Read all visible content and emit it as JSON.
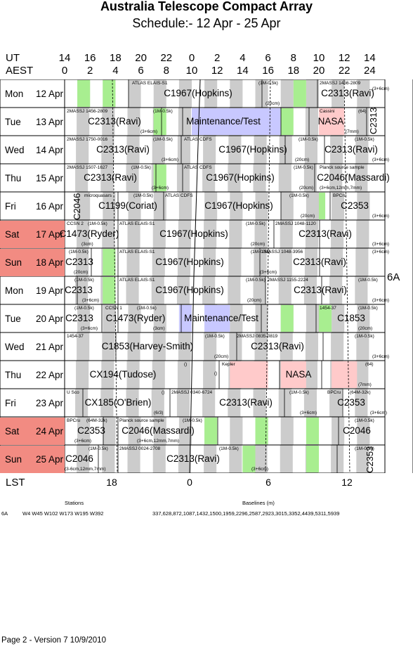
{
  "title": "Australia Telescope Compact Array",
  "subtitle": "Schedule:- 12 Apr - 25 Apr",
  "axes": {
    "ut_label": "UT",
    "aest_label": "AEST",
    "lst_label": "LST",
    "ut_ticks": [
      "14",
      "16",
      "18",
      "20",
      "22",
      "0",
      "2",
      "4",
      "6",
      "8",
      "10",
      "12",
      "14"
    ],
    "aest_ticks": [
      "0",
      "2",
      "4",
      "6",
      "8",
      "10",
      "12",
      "14",
      "16",
      "18",
      "20",
      "22",
      "24"
    ],
    "lst_ticks": [
      "18",
      "0",
      "6",
      "12"
    ]
  },
  "array_config": "6A",
  "days": [
    {
      "day": "Mon",
      "date": "12 Apr",
      "weekend": false
    },
    {
      "day": "Tue",
      "date": "13 Apr",
      "weekend": false
    },
    {
      "day": "Wed",
      "date": "14 Apr",
      "weekend": false
    },
    {
      "day": "Thu",
      "date": "15 Apr",
      "weekend": false
    },
    {
      "day": "Fri",
      "date": "16 Apr",
      "weekend": false
    },
    {
      "day": "Sat",
      "date": "17 Apr",
      "weekend": true
    },
    {
      "day": "Sun",
      "date": "18 Apr",
      "weekend": true
    },
    {
      "day": "Mon",
      "date": "19 Apr",
      "weekend": false
    },
    {
      "day": "Tue",
      "date": "20 Apr",
      "weekend": false
    },
    {
      "day": "Wed",
      "date": "21 Apr",
      "weekend": false
    },
    {
      "day": "Thu",
      "date": "22 Apr",
      "weekend": false
    },
    {
      "day": "Fri",
      "date": "23 Apr",
      "weekend": false
    },
    {
      "day": "Sat",
      "date": "24 Apr",
      "weekend": true
    },
    {
      "day": "Sun",
      "date": "25 Apr",
      "weekend": true
    }
  ],
  "big_labels": [
    [
      "C1967(Hopkins)",
      "C2313(Ravi)"
    ],
    [
      "C2313(Ravi)",
      "Maintenance/Test",
      "NASA"
    ],
    [
      "C2313(Ravi)",
      "C1967(Hopkins)",
      "C2313(Ravi)"
    ],
    [
      "C2313(Ravi)",
      "C1967(Hopkins)",
      "C2046(Massardi)"
    ],
    [
      "C1199(Coriat)",
      "C1967(Hopkins)",
      "C2353"
    ],
    [
      "C1473(Ryder)",
      "C1967(Hopkins)",
      "C2313(Ravi)"
    ],
    [
      "C2313",
      "C1967(Hopkins)",
      "C2313(Ravi)"
    ],
    [
      "C2313",
      "C1967(Hopkins)",
      "C2313(Ravi)"
    ],
    [
      "C2313",
      "C1473(Ryder)",
      "Maintenance/Test",
      "C1853"
    ],
    [
      "C1853(Harvey-Smith)",
      "C2313(Ravi)"
    ],
    [
      "CX194(Tudose)",
      "NASA"
    ],
    [
      "CX185(O'Brien)",
      "C2313(Ravi)",
      "C2353"
    ],
    [
      "C2353",
      "C2046(Massardi)",
      "C2046"
    ],
    [
      "C2046",
      "C2313(Ravi)"
    ]
  ],
  "rotated_labels": [
    "C2313",
    "C2046",
    "C2353"
  ],
  "small_labels": [
    [
      "ATLAS ELAIS-S1",
      "(1M-0.5k)",
      "2MASSJ 1456-2809",
      "(3+6cm)",
      "(20cm)"
    ],
    [
      "2MASSJ 1456-2809",
      "(1M-0.5k)",
      "Cassini",
      "(64)",
      "(3+6cm)",
      "(7mm)"
    ],
    [
      "2MASSJ 1750-0016",
      "(1M-0.5k)",
      "ATLAS CDFS",
      "(1M-0.5k)",
      "(1M-0.5k)",
      "(3+6cm)",
      "(20cm)",
      "(3+6cm)"
    ],
    [
      "2MASSJ 1507-1627",
      "(1M-0.5k)",
      "ATLAS CDFS",
      "(1M-0.5k)",
      "Planck source sample",
      "(3+6cm)",
      "(20cm)",
      "(3+6cm,12mm,7mm)"
    ],
    [
      "microquasars",
      "(1M-0.5k)",
      "ATLAS CDFS",
      "(1M-0.5k)",
      "BPCru",
      "(20cm)",
      "(3+6cm)"
    ],
    [
      "CCSN 2",
      "(1M-0.5k)",
      "ATLAS ELAIS-S1",
      "(1M-0.5k)",
      "2MASSJ 1048-1120",
      "(3cm)",
      "(20cm)",
      "(3+6cm)"
    ],
    [
      "(1M-0.5k)",
      "ATLAS ELAIS-S1",
      "(1M-0.5k)",
      "2MASSJ 1048-3956",
      "(3+6cm)",
      "(20cm)",
      "(3+6cm)"
    ],
    [
      "(1M-0.5k)",
      "ATLAS ELAIS-S1",
      "(1M-0.5k)",
      "2MASSJ 1155-2224",
      "(1M-0.5k)",
      "(3+6cm)",
      "(20cm)",
      "(3+6cm)"
    ],
    [
      "(1M-0.5k)",
      "CCSN 1",
      "(1M-0.5k)",
      "1454-37",
      "(1M-0.5k)",
      "(3+6cm)",
      "(3cm)",
      "(20cm)"
    ],
    [
      "1454-37",
      "(1M-0.5k)",
      "2MASSJ 0835-0819",
      "(1M-0.5k)",
      "(20cm)",
      "(3+6cm)"
    ],
    [
      "()",
      "Kepler",
      "(64)",
      "()",
      "(7mm)"
    ],
    [
      "U Sco",
      "()",
      "2MASSJ 0340-6724",
      "(1M-0.5k)",
      "BPCru",
      "(64M-32k)",
      "(6/3)",
      "(3+6cm)",
      "(3+6cm)"
    ],
    [
      "BPCru",
      "(64M-32k)",
      "Planck source sample",
      "(1M-0.5k)",
      "(1M-0.5k)",
      "(3+6cm)",
      "(3+6cm,12mm,7mm)"
    ],
    [
      "(1M-0.5k)",
      "2MASSJ 0024-2708",
      "(1M-0.5k)",
      "(1M-0.5k)",
      "(3-6cm,12mm,7mm)",
      "(3+6cm)"
    ]
  ],
  "stations_block": {
    "stations_header": "Stations",
    "baselines_header": "Baselines (m)",
    "config": "6A",
    "stations": "W4 W45 W102 W173 W195 W392",
    "baselines": "337,628,872,1087,1432,1500,1959,2296,2587,2923,3015,3352,4439,5311,5939"
  },
  "footer": "Page 2 - Version 7  10/9/2010",
  "colors": {
    "weekend": "#f28b82",
    "grey": "#cccccc",
    "green": "#a8ee90",
    "blue": "#c8c8ff",
    "pink": "#ffcaca"
  }
}
